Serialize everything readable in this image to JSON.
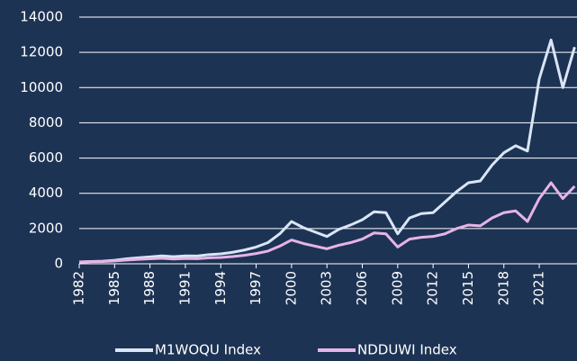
{
  "chart_data": {
    "type": "line",
    "x": [
      1982,
      1983,
      1984,
      1985,
      1986,
      1987,
      1988,
      1989,
      1990,
      1991,
      1992,
      1993,
      1994,
      1995,
      1996,
      1997,
      1998,
      1999,
      2000,
      2001,
      2002,
      2003,
      2004,
      2005,
      2006,
      2007,
      2008,
      2009,
      2010,
      2011,
      2012,
      2013,
      2014,
      2015,
      2016,
      2017,
      2018,
      2019,
      2020,
      2021,
      2022,
      2023,
      2024
    ],
    "series": [
      {
        "name": "M1WOQU Index",
        "color": "#d9e6f6",
        "values": [
          100,
          130,
          150,
          200,
          280,
          340,
          390,
          450,
          400,
          450,
          440,
          520,
          560,
          650,
          780,
          950,
          1200,
          1700,
          2400,
          2050,
          1800,
          1550,
          1950,
          2200,
          2500,
          2950,
          2900,
          1700,
          2600,
          2850,
          2900,
          3500,
          4100,
          4600,
          4700,
          5600,
          6300,
          6700,
          6400,
          10500,
          12700,
          10000,
          12300
        ]
      },
      {
        "name": "NDDUWI Index",
        "color": "#e6b4e6",
        "values": [
          100,
          120,
          130,
          160,
          210,
          250,
          280,
          310,
          270,
          300,
          290,
          340,
          360,
          410,
          480,
          580,
          720,
          1000,
          1350,
          1150,
          1000,
          850,
          1050,
          1200,
          1400,
          1750,
          1700,
          950,
          1400,
          1500,
          1550,
          1700,
          2000,
          2200,
          2150,
          2600,
          2900,
          3000,
          2400,
          3700,
          4600,
          3700,
          4400
        ]
      }
    ],
    "xlim": [
      1982,
      2024.2
    ],
    "xticks": [
      1982,
      1985,
      1988,
      1991,
      1994,
      1997,
      2000,
      2003,
      2006,
      2009,
      2012,
      2015,
      2018,
      2021
    ],
    "ylim": [
      0,
      14000
    ],
    "yticks": [
      0,
      2000,
      4000,
      6000,
      8000,
      10000,
      12000,
      14000
    ],
    "grid": true,
    "legend": "bottom"
  }
}
